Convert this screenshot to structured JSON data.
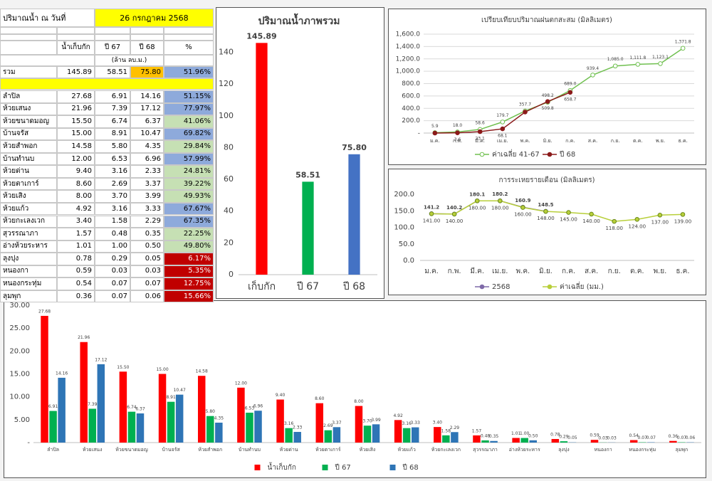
{
  "table": {
    "date_label": "ปริมาณน้ำ ณ วันที่",
    "date": "26 กรกฎาคม 2568",
    "columns": [
      "น้ำเก็บกัก",
      "ปี 67",
      "ปี 68",
      "%"
    ],
    "unit": "(ล้าน ลบ.ม.)",
    "total": [
      "รวม",
      "145.89",
      "58.51",
      "75.80",
      "51.96%"
    ],
    "rows": [
      [
        "ลำปิล",
        "27.68",
        "6.91",
        "14.16",
        "51.15%"
      ],
      [
        "ห้วยเสนง",
        "21.96",
        "7.39",
        "17.12",
        "77.97%"
      ],
      [
        "ห้วยขนาดมอญ",
        "15.50",
        "6.74",
        "6.37",
        "41.06%"
      ],
      [
        "บ้านจรัส",
        "15.00",
        "8.91",
        "10.47",
        "69.82%"
      ],
      [
        "ห้วยสำพอก",
        "14.58",
        "5.80",
        "4.35",
        "29.84%"
      ],
      [
        "บ้านทำนบ",
        "12.00",
        "6.53",
        "6.96",
        "57.99%"
      ],
      [
        "ห้วยด่าน",
        "9.40",
        "3.16",
        "2.33",
        "24.81%"
      ],
      [
        "ห้วยตาเการ์",
        "8.60",
        "2.69",
        "3.37",
        "39.22%"
      ],
      [
        "ห้วยเสิง",
        "8.00",
        "3.70",
        "3.99",
        "49.93%"
      ],
      [
        "ห้วยแก้ว",
        "4.92",
        "3.16",
        "3.33",
        "67.67%"
      ],
      [
        "ห้วยกะเลงเวก",
        "3.40",
        "1.58",
        "2.29",
        "67.35%"
      ],
      [
        "สุวรรณาภา",
        "1.57",
        "0.48",
        "0.35",
        "22.25%"
      ],
      [
        "อ่างห้วยระหาร",
        "1.01",
        "1.00",
        "0.50",
        "49.80%"
      ],
      [
        "ลุงปุง",
        "0.78",
        "0.29",
        "0.05",
        "6.17%"
      ],
      [
        "หนองกา",
        "0.59",
        "0.03",
        "0.03",
        "5.35%"
      ],
      [
        "หนองกระทุ่ม",
        "0.54",
        "0.07",
        "0.07",
        "12.75%"
      ],
      [
        "ลุมพุก",
        "0.36",
        "0.07",
        "0.06",
        "15.66%"
      ]
    ],
    "pct_colors": [
      "#8eaadb",
      "#8eaadb",
      "#c6e0b4",
      "#8eaadb",
      "#c6e0b4",
      "#8eaadb",
      "#c6e0b4",
      "#c6e0b4",
      "#c6e0b4",
      "#8eaadb",
      "#8eaadb",
      "#c6e0b4",
      "#c6e0b4",
      "#c00000",
      "#c00000",
      "#c00000",
      "#c00000"
    ]
  },
  "chart_data": [
    {
      "type": "bar",
      "title": "ปริมาณน้ำภาพรวม",
      "categories": [
        "เก็บกัก",
        "ปี 67",
        "ปี 68"
      ],
      "values": [
        145.89,
        58.51,
        75.8
      ],
      "value_labels": [
        "145.89",
        "58.51",
        "75.80"
      ],
      "colors": [
        "#ff0000",
        "#00b050",
        "#4472c4"
      ],
      "ylim": [
        0,
        155
      ],
      "yticks": [
        0,
        20,
        40,
        60,
        80,
        100,
        120,
        140
      ],
      "grid": false
    },
    {
      "type": "line",
      "title": "เปรียบเทียบปริมาณฝนตกสะสม (มิลลิเมตร)",
      "categories": [
        "ม.ค.",
        "ก.พ.",
        "มี.ค.",
        "เม.ย.",
        "พ.ค.",
        "มิ.ย.",
        "ก.ค.",
        "ส.ค.",
        "ก.ย.",
        "ต.ค.",
        "พ.ย.",
        "ธ.ค."
      ],
      "series": [
        {
          "name": "ค่าเฉลี่ย 41-67",
          "color": "#70c050",
          "values": [
            5.9,
            18.0,
            58.6,
            179.7,
            357.7,
            498.2,
            689.0,
            939.4,
            1085.0,
            1111.8,
            1123.1,
            1371.8
          ],
          "value_labels": [
            "5.9",
            "18.0",
            "58.6",
            "179.7",
            "357.7",
            "498.2",
            "689.0",
            "939.4",
            "1,085.0",
            "1,111.8",
            "1,123.1",
            "1,371.8"
          ]
        },
        {
          "name": "ปี 68",
          "color": "#8b1a1a",
          "values": [
            0,
            3.6,
            23.1,
            68.1,
            340,
            509.8,
            658.7,
            null,
            null,
            null,
            null,
            null
          ],
          "value_labels": [
            null,
            "3.6",
            "23.1",
            "68.1",
            null,
            "509.8",
            "658.7",
            null,
            null,
            null,
            null,
            null
          ]
        }
      ],
      "ylim": [
        0,
        1600
      ],
      "yticks": [
        {
          "value": 0,
          "label": "-"
        },
        {
          "value": 200,
          "label": "200.0"
        },
        {
          "value": 400,
          "label": "400.0"
        },
        {
          "value": 600,
          "label": "600.0"
        },
        {
          "value": 800,
          "label": "800.0"
        },
        {
          "value": 1000,
          "label": "1,000.0"
        },
        {
          "value": 1200,
          "label": "1,200.0"
        },
        {
          "value": 1400,
          "label": "1,400.0"
        },
        {
          "value": 1600,
          "label": "1,600.0"
        }
      ],
      "grid": true,
      "legend": "bottom"
    },
    {
      "type": "line",
      "title": "การระเหยรายเดือน (มิลลิเมตร)",
      "categories": [
        "ม.ค.",
        "ก.พ.",
        "มี.ค.",
        "เม.ย.",
        "พ.ค.",
        "มิ.ย.",
        "ก.ค.",
        "ส.ค.",
        "ก.ย.",
        "ต.ค.",
        "พ.ย.",
        "ธ.ค."
      ],
      "series": [
        {
          "name": "2568",
          "color": "#7f6aa8",
          "values": [
            141.2,
            140.2,
            180.1,
            180.2,
            160.9,
            148.5,
            null,
            null,
            null,
            null,
            null,
            null
          ]
        },
        {
          "name": "ค่าเฉลี่ย (มม.)",
          "color": "#b8cf3a",
          "values": [
            141,
            140,
            180,
            180,
            160,
            148,
            145,
            140,
            118,
            124,
            137,
            139
          ],
          "value_labels": [
            "141.00",
            "140.00",
            "180.00",
            "180.00",
            "160.00",
            "148.00",
            "145.00",
            "140.00",
            "118.00",
            "124.00",
            "137.00",
            "139.00"
          ]
        }
      ],
      "ylim": [
        0,
        200
      ],
      "yticks": [
        {
          "value": 0,
          "label": "0.0"
        },
        {
          "value": 50,
          "label": "50.0"
        },
        {
          "value": 100,
          "label": "100.0"
        },
        {
          "value": 150,
          "label": "150.0"
        },
        {
          "value": 200,
          "label": "200.0"
        }
      ],
      "grid": false,
      "legend": "bottom"
    },
    {
      "type": "bar",
      "categories": [
        "ลำปิล",
        "ห้วยเสนง",
        "ห้วยขนาดมอญ",
        "บ้านจรัส",
        "ห้วยสำพอก",
        "บ้านทำนบ",
        "ห้วยด่าน",
        "ห้วยตาเการ์",
        "ห้วยเสิง",
        "ห้วยแก้ว",
        "ห้วยกะเลงเวก",
        "สุวรรณาภา",
        "อ่างห้วยระหาร",
        "ลุงปุง",
        "หนองกา",
        "หนองกระทุ่ม",
        "ลุมพุก"
      ],
      "series": [
        {
          "name": "น้ำเก็บกัก",
          "color": "#ff0000",
          "values": [
            27.68,
            21.96,
            15.5,
            15.0,
            14.58,
            12.0,
            9.4,
            8.6,
            8.0,
            4.92,
            3.4,
            1.57,
            1.01,
            0.78,
            0.59,
            0.54,
            0.36
          ],
          "value_labels": [
            "27.68",
            "21.96",
            "15.50",
            "15.00",
            "14.58",
            "12.00",
            "9.40",
            "8.60",
            "8.00",
            "4.92",
            "3.40",
            "1.57",
            "1.01",
            "0.78",
            "0.59",
            "0.54",
            "0.36"
          ]
        },
        {
          "name": "ปี 67",
          "color": "#00b050",
          "values": [
            6.91,
            7.39,
            6.74,
            8.91,
            5.8,
            6.53,
            3.16,
            2.69,
            3.7,
            3.16,
            1.58,
            0.48,
            1.0,
            0.29,
            0.03,
            0.07,
            0.07
          ],
          "value_labels": [
            "6.91",
            "7.39",
            "6.74",
            "8.91",
            "5.80",
            "6.53",
            "3.16",
            "2.69",
            "3.70",
            "3.16",
            "1.58",
            "0.48",
            "1.00",
            "0.29",
            "0.03",
            "0.07",
            "0.07"
          ]
        },
        {
          "name": "ปี 68",
          "color": "#2e75b6",
          "values": [
            14.16,
            17.12,
            6.37,
            10.47,
            4.35,
            6.96,
            2.33,
            3.37,
            3.99,
            3.33,
            2.29,
            0.35,
            0.5,
            0.05,
            0.03,
            0.07,
            0.06
          ],
          "value_labels": [
            "14.16",
            "17.12",
            "6.37",
            "10.47",
            "4.35",
            "6.96",
            "2.33",
            "3.37",
            "3.99",
            "3.33",
            "2.29",
            "0.35",
            "0.50",
            "0.05",
            "0.03",
            "0.07",
            "0.06"
          ]
        }
      ],
      "ylim": [
        0,
        30
      ],
      "yticks": [
        {
          "value": 0,
          "label": "-"
        },
        {
          "value": 5,
          "label": "5.00"
        },
        {
          "value": 10,
          "label": "10.00"
        },
        {
          "value": 15,
          "label": "15.00"
        },
        {
          "value": 20,
          "label": "20.00"
        },
        {
          "value": 25,
          "label": "25.00"
        },
        {
          "value": 30,
          "label": "30.00"
        }
      ],
      "grid": false,
      "legend": "bottom"
    }
  ]
}
